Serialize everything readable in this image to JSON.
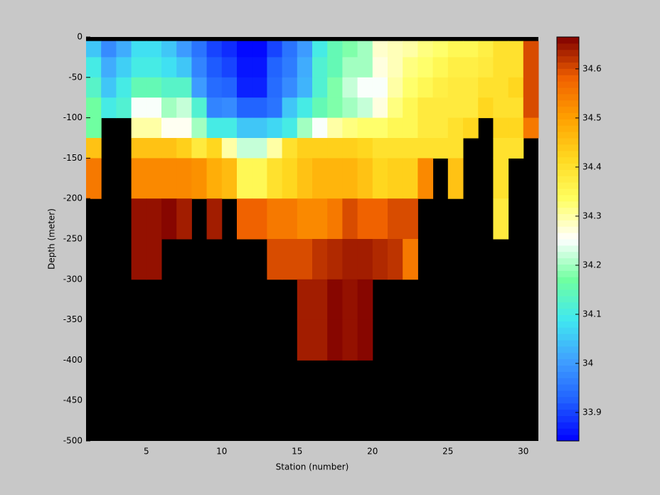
{
  "chart_data": {
    "type": "heatmap",
    "xlabel": "Station (number)",
    "ylabel": "Depth (meter)",
    "xlim": [
      1,
      31
    ],
    "ylim": [
      -500,
      0
    ],
    "xticks": [
      5,
      10,
      15,
      20,
      25,
      30
    ],
    "yticks": [
      0,
      -50,
      -100,
      -150,
      -200,
      -250,
      -300,
      -350,
      -400,
      -450,
      -500
    ],
    "x_edges": [
      1,
      2,
      3,
      4,
      5,
      6,
      7,
      8,
      9,
      10,
      11,
      12,
      13,
      14,
      15,
      16,
      17,
      18,
      19,
      20,
      21,
      22,
      23,
      24,
      25,
      26,
      27,
      28,
      29,
      30,
      31
    ],
    "y_edges": [
      -5,
      -25,
      -50,
      -75,
      -100,
      -125,
      -150,
      -200,
      -250,
      -300,
      -350,
      -400
    ],
    "z": [
      [
        34.05,
        33.98,
        34.02,
        34.08,
        34.08,
        34.05,
        34.0,
        33.95,
        33.9,
        33.88,
        33.85,
        33.85,
        33.9,
        33.95,
        34.0,
        34.1,
        34.15,
        34.18,
        34.2,
        34.28,
        34.29,
        34.3,
        34.32,
        34.33,
        34.35,
        34.35,
        34.37,
        34.4,
        34.4,
        34.6
      ],
      [
        34.1,
        34.02,
        34.06,
        34.1,
        34.1,
        34.08,
        34.05,
        33.97,
        33.92,
        33.9,
        33.86,
        33.86,
        33.93,
        33.96,
        34.02,
        34.12,
        34.15,
        34.2,
        34.2,
        34.27,
        34.29,
        34.32,
        34.33,
        34.35,
        34.37,
        34.37,
        34.38,
        34.4,
        34.4,
        34.6
      ],
      [
        34.13,
        34.05,
        34.1,
        34.15,
        34.15,
        34.13,
        34.13,
        34.0,
        33.94,
        33.93,
        33.87,
        33.87,
        33.94,
        33.98,
        34.03,
        34.12,
        34.18,
        34.22,
        34.25,
        34.25,
        34.3,
        34.33,
        34.35,
        34.37,
        34.38,
        34.38,
        34.4,
        34.4,
        34.42,
        34.6
      ],
      [
        34.17,
        34.1,
        34.12,
        34.25,
        34.25,
        34.2,
        34.22,
        34.12,
        33.97,
        33.98,
        33.93,
        33.93,
        33.95,
        34.05,
        34.1,
        34.15,
        34.18,
        34.2,
        34.22,
        34.27,
        34.32,
        34.35,
        34.38,
        34.38,
        34.38,
        34.38,
        34.42,
        34.4,
        34.4,
        34.6
      ],
      [
        34.17,
        null,
        null,
        34.3,
        34.3,
        34.26,
        34.26,
        34.2,
        34.1,
        34.1,
        34.05,
        34.05,
        34.07,
        34.1,
        34.2,
        34.25,
        34.3,
        34.32,
        34.33,
        34.33,
        34.35,
        34.35,
        34.38,
        34.38,
        34.4,
        34.42,
        null,
        34.42,
        34.42,
        34.55
      ],
      [
        34.45,
        null,
        null,
        34.45,
        34.45,
        34.45,
        34.43,
        34.38,
        34.42,
        34.3,
        34.22,
        34.22,
        34.3,
        34.4,
        34.43,
        34.43,
        34.43,
        34.43,
        34.42,
        34.4,
        34.4,
        34.4,
        34.4,
        34.4,
        34.4,
        null,
        null,
        34.4,
        34.4,
        null
      ],
      [
        34.55,
        null,
        null,
        34.53,
        34.53,
        34.53,
        34.53,
        34.52,
        34.48,
        34.46,
        34.35,
        34.35,
        34.4,
        34.42,
        34.45,
        34.47,
        34.47,
        34.47,
        34.45,
        34.42,
        34.43,
        34.43,
        34.53,
        null,
        34.45,
        null,
        null,
        34.4,
        null,
        null
      ],
      [
        null,
        null,
        null,
        34.65,
        34.65,
        34.66,
        34.64,
        null,
        34.64,
        null,
        34.58,
        34.58,
        34.55,
        34.55,
        34.53,
        34.53,
        34.55,
        34.6,
        34.58,
        34.58,
        34.6,
        34.6,
        null,
        null,
        null,
        null,
        null,
        34.38,
        null,
        null
      ],
      [
        null,
        null,
        null,
        34.65,
        34.65,
        null,
        null,
        null,
        null,
        null,
        null,
        null,
        34.6,
        34.6,
        34.6,
        34.62,
        34.63,
        34.64,
        34.64,
        34.63,
        34.62,
        34.55,
        null,
        null,
        null,
        null,
        null,
        null,
        null,
        null
      ],
      [
        null,
        null,
        null,
        null,
        null,
        null,
        null,
        null,
        null,
        null,
        null,
        null,
        null,
        null,
        34.64,
        34.64,
        34.66,
        34.65,
        34.66,
        null,
        null,
        null,
        null,
        null,
        null,
        null,
        null,
        null,
        null,
        null
      ],
      [
        null,
        null,
        null,
        null,
        null,
        null,
        null,
        null,
        null,
        null,
        null,
        null,
        null,
        null,
        34.64,
        34.64,
        34.66,
        34.65,
        34.66,
        null,
        null,
        null,
        null,
        null,
        null,
        null,
        null,
        null,
        null,
        null
      ]
    ],
    "clim": [
      33.842,
      34.665
    ],
    "colorbar_ticks": [
      33.9,
      34,
      34.1,
      34.2,
      34.3,
      34.4,
      34.5,
      34.6
    ],
    "colormap": [
      "#0000ff",
      "#2060ff",
      "#40a0ff",
      "#40e8f0",
      "#70ffa0",
      "#ffffff",
      "#ffff60",
      "#ffd820",
      "#ffa000",
      "#f06000",
      "#800000"
    ],
    "background": "#000000"
  }
}
